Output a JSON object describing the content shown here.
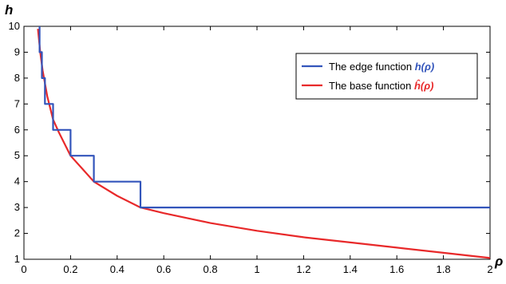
{
  "chart_data": {
    "type": "line",
    "xlabel": "ρ",
    "ylabel": "h",
    "xlim": [
      0,
      2
    ],
    "ylim": [
      1,
      10
    ],
    "x_ticks": [
      0,
      0.2,
      0.4,
      0.6,
      0.8,
      1,
      1.2,
      1.4,
      1.6,
      1.8,
      2
    ],
    "x_tick_labels": [
      "0",
      "0.2",
      "0.4",
      "0.6",
      "0.8",
      "1",
      "1.2",
      "1.4",
      "1.6",
      "1.8",
      "2"
    ],
    "y_ticks": [
      1,
      2,
      3,
      4,
      5,
      6,
      7,
      8,
      9,
      10
    ],
    "y_tick_labels": [
      "1",
      "2",
      "3",
      "4",
      "5",
      "6",
      "7",
      "8",
      "9",
      "10"
    ],
    "grid": false,
    "legend_position": "top-right",
    "series": [
      {
        "name": "The edge function h(ρ)",
        "legend_text": "The edge function ",
        "legend_symbol": "h(ρ)",
        "color": "#3355bb",
        "points": [
          [
            0.067,
            10
          ],
          [
            0.067,
            9
          ],
          [
            0.077,
            9
          ],
          [
            0.077,
            8
          ],
          [
            0.09,
            8
          ],
          [
            0.09,
            7
          ],
          [
            0.125,
            7
          ],
          [
            0.125,
            6
          ],
          [
            0.2,
            6
          ],
          [
            0.2,
            5
          ],
          [
            0.3,
            5
          ],
          [
            0.3,
            4
          ],
          [
            0.5,
            4
          ],
          [
            0.5,
            3
          ],
          [
            2,
            3
          ]
        ]
      },
      {
        "name": "The base function ĥ(ρ)",
        "legend_text": "The base function ",
        "legend_symbol": "ĥ(ρ)",
        "color": "#e8292a",
        "points": [
          [
            0.06,
            9.9
          ],
          [
            0.07,
            9.0
          ],
          [
            0.08,
            8.3
          ],
          [
            0.1,
            7.3
          ],
          [
            0.125,
            6.4
          ],
          [
            0.15,
            5.9
          ],
          [
            0.2,
            5.0
          ],
          [
            0.25,
            4.5
          ],
          [
            0.3,
            4.0
          ],
          [
            0.4,
            3.45
          ],
          [
            0.5,
            3.0
          ],
          [
            0.6,
            2.78
          ],
          [
            0.8,
            2.4
          ],
          [
            1.0,
            2.1
          ],
          [
            1.2,
            1.85
          ],
          [
            1.4,
            1.65
          ],
          [
            1.6,
            1.45
          ],
          [
            1.8,
            1.25
          ],
          [
            2.0,
            1.05
          ]
        ]
      }
    ]
  }
}
